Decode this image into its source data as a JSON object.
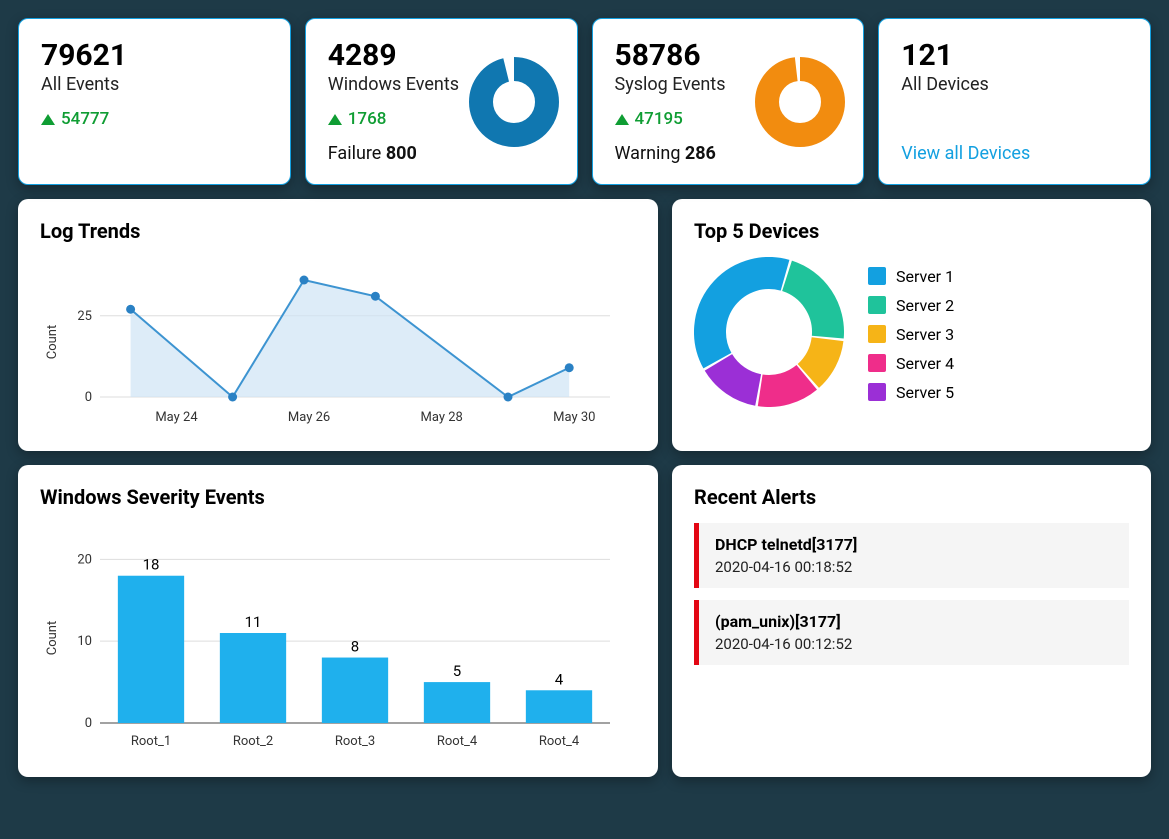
{
  "cards": {
    "all_events": {
      "value": "79621",
      "label": "All Events",
      "delta": "54777"
    },
    "windows_events": {
      "value": "4289",
      "label": "Windows Events",
      "delta": "1768",
      "sub_prefix": "Failure ",
      "sub_value": "800",
      "donut": {
        "color": "#1077b0",
        "bg": "#ffffff",
        "percent": 96,
        "size": 90,
        "thickness": 24
      }
    },
    "syslog_events": {
      "value": "58786",
      "label": "Syslog Events",
      "delta": "47195",
      "sub_prefix": "Warning ",
      "sub_value": "286",
      "donut": {
        "color": "#f28c0f",
        "bg": "#ffffff",
        "percent": 98,
        "size": 90,
        "thickness": 24
      }
    },
    "all_devices": {
      "value": "121",
      "label": "All Devices",
      "link": "View all Devices"
    }
  },
  "log_trends": {
    "title": "Log Trends",
    "type": "area-line",
    "y_label": "Count",
    "yticks": [
      0,
      25
    ],
    "xlabels": [
      "May 24",
      "May 26",
      "May 28",
      "May 30"
    ],
    "points": [
      {
        "x": 0.06,
        "y": 27
      },
      {
        "x": 0.26,
        "y": 0
      },
      {
        "x": 0.4,
        "y": 36
      },
      {
        "x": 0.54,
        "y": 31
      },
      {
        "x": 0.8,
        "y": 0
      },
      {
        "x": 0.92,
        "y": 9
      }
    ],
    "ymax": 40,
    "line_color": "#3d94d1",
    "fill_color": "#cfe4f5",
    "marker_color": "#2a81c4",
    "grid_color": "#dddddd"
  },
  "top_devices": {
    "title": "Top 5 Devices",
    "type": "donut",
    "segments": [
      {
        "label": "Server 1",
        "color": "#13a0e0",
        "value": 38
      },
      {
        "label": "Server 2",
        "color": "#1fc39b",
        "value": 22
      },
      {
        "label": "Server 3",
        "color": "#f6b417",
        "value": 12
      },
      {
        "label": "Server 4",
        "color": "#ef2d8a",
        "value": 14
      },
      {
        "label": "Server 5",
        "color": "#9b2fd6",
        "value": 14
      }
    ],
    "size": 150,
    "thickness": 32,
    "gap_deg": 2
  },
  "severity": {
    "title": "Windows Severity Events",
    "type": "bar",
    "y_label": "Count",
    "yticks": [
      0,
      10,
      20
    ],
    "ymax": 22,
    "bars": [
      {
        "label": "Root_1",
        "value": 18
      },
      {
        "label": "Root_2",
        "value": 11
      },
      {
        "label": "Root_3",
        "value": 8
      },
      {
        "label": "Root_4",
        "value": 5
      },
      {
        "label": "Root_4",
        "value": 4
      }
    ],
    "bar_color": "#1fb0ed",
    "bar_width": 0.65,
    "grid_color": "#dddddd",
    "value_label_fontsize": 15
  },
  "alerts": {
    "title": "Recent Alerts",
    "items": [
      {
        "title": "DHCP telnetd[3177]",
        "time": "2020-04-16 00:18:52"
      },
      {
        "title": "(pam_unix)[3177]",
        "time": "2020-04-16 00:12:52"
      }
    ],
    "accent_color": "#e30613",
    "row_bg": "#f5f5f5"
  },
  "colors": {
    "page_bg": "#1e3a47",
    "card_bg": "#ffffff",
    "card_border": "#13a0e0",
    "delta_green": "#0f9d33"
  }
}
